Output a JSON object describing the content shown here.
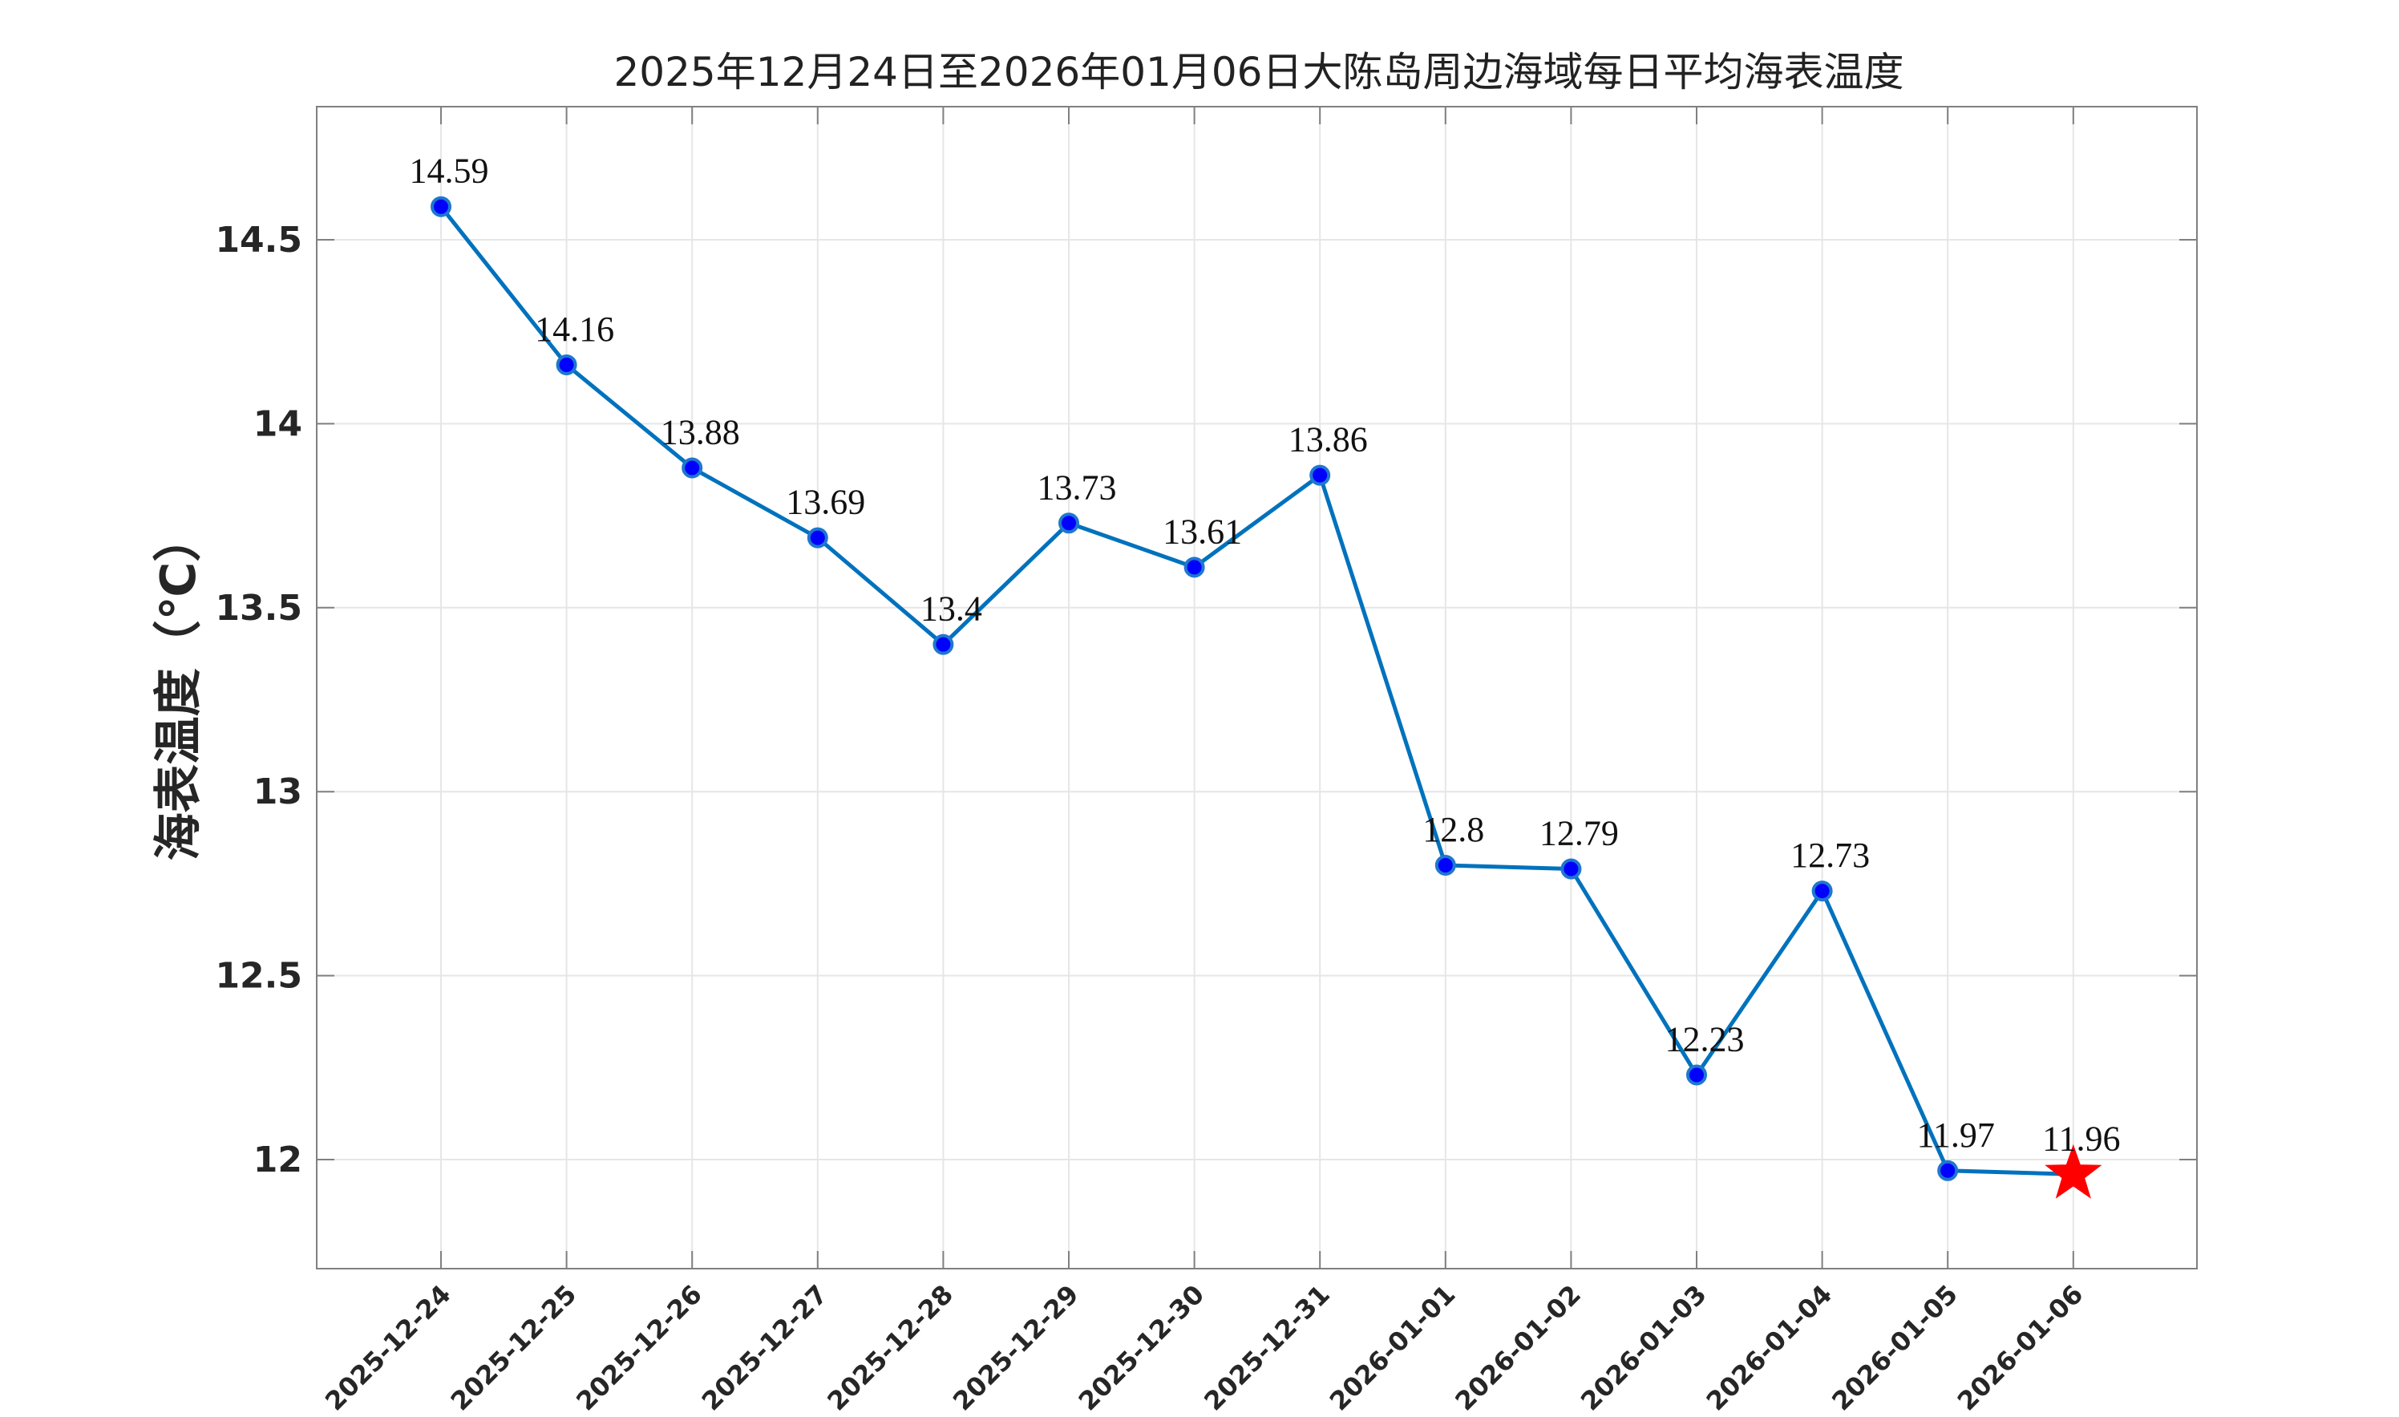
{
  "chart_data": {
    "type": "line",
    "title": "2025年12月24日至2026年01月06日大陈岛周边海域每日平均海表温度",
    "xlabel": "",
    "ylabel": "海表温度（℃）",
    "categories": [
      "2025-12-24",
      "2025-12-25",
      "2025-12-26",
      "2025-12-27",
      "2025-12-28",
      "2025-12-29",
      "2025-12-30",
      "2025-12-31",
      "2026-01-01",
      "2026-01-02",
      "2026-01-03",
      "2026-01-04",
      "2026-01-05",
      "2026-01-06"
    ],
    "values": [
      14.59,
      14.16,
      13.88,
      13.69,
      13.4,
      13.73,
      13.61,
      13.86,
      12.8,
      12.79,
      12.23,
      12.73,
      11.97,
      11.96
    ],
    "data_labels": [
      "14.59",
      "14.16",
      "13.88",
      "13.69",
      "13.4",
      "13.73",
      "13.61",
      "13.86",
      "12.8",
      "12.79",
      "12.23",
      "12.73",
      "11.97",
      "11.96"
    ],
    "ylim": [
      11.7,
      14.86
    ],
    "yticks": [
      12,
      12.5,
      13,
      13.5,
      14,
      14.5
    ],
    "ytick_labels": [
      "12",
      "12.5",
      "13",
      "13.5",
      "14",
      "14.5"
    ],
    "grid": true,
    "highlight_last": "star",
    "colors": {
      "line": "#0072BD",
      "marker_fill": "#0000FF",
      "marker_edge": "#1F77D0",
      "star": "#FF0000",
      "grid": "#E6E6E6",
      "axes": "#808080"
    }
  }
}
